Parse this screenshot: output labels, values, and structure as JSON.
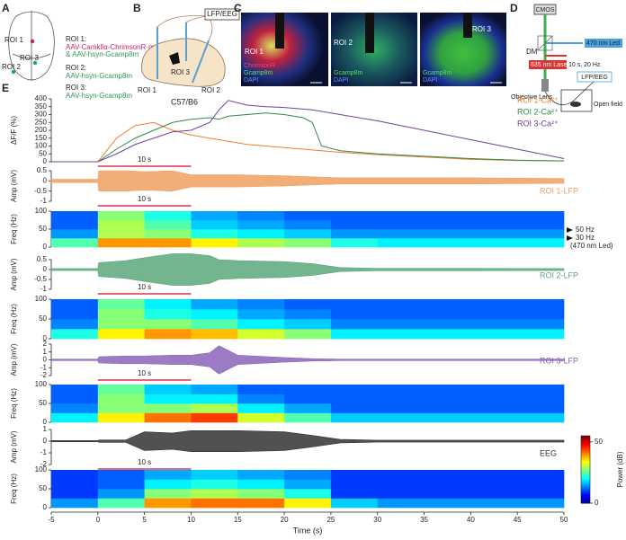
{
  "figure": {
    "panel_a": {
      "label": "A",
      "roi_marks": [
        "ROI 1",
        "ROI 3",
        "ROI 2"
      ],
      "notes": [
        {
          "title": "ROI 1:",
          "lines": [
            "AAV-Camkllα-ChrimsonR-m",
            "& AAV-hsyn-Gcamp8m"
          ]
        },
        {
          "title": "ROI 2:",
          "lines": [
            "AAV-hsyn-Gcamp8m"
          ]
        },
        {
          "title": "ROI 3:",
          "lines": [
            "AAV-hsyn-Gcamp8m"
          ]
        }
      ]
    },
    "panel_b": {
      "label": "B",
      "recording": "LFP/EEG",
      "rois": [
        "ROI 3",
        "ROI 1",
        "ROI 2"
      ],
      "strain": "C57/B6"
    },
    "panel_c": {
      "label": "C",
      "images": [
        {
          "roi": "ROI 1",
          "stains": [
            "ChrimsonR",
            "Gcamp8m",
            "DAPI"
          ]
        },
        {
          "roi": "ROI 2",
          "stains": [
            "Gcamp8m",
            "DAPI"
          ]
        },
        {
          "roi": "ROI 3",
          "stains": [
            "Gcamp8m",
            "DAPI"
          ]
        }
      ]
    },
    "panel_d": {
      "label": "D",
      "camera": "CMOS",
      "mirror": "DM",
      "led": "470 nm Led",
      "laser": "635 nm Laser",
      "laser_protocol": "10 s, 20 Hz",
      "lens": "Objective Lens",
      "recording": "LFP/EEG",
      "arena": "Open field"
    },
    "panel_e": {
      "label": "E",
      "annotations": [
        "50 Hz",
        "30 Hz",
        "(470 nm Led)"
      ],
      "colorbar": {
        "label": "Power (dB)",
        "lim": [
          0,
          55
        ],
        "ticks": [
          0,
          50
        ]
      }
    }
  },
  "chart_data": [
    {
      "type": "line",
      "ylabel": "ΔF/F (%)",
      "xlim": [
        -5,
        50
      ],
      "ylim": [
        0,
        400
      ],
      "yticks": [
        0,
        50,
        100,
        150,
        200,
        250,
        300,
        350,
        400
      ],
      "stimulus": [
        0,
        10
      ],
      "stim_label": "10 s",
      "x": [
        -5,
        0,
        2,
        4,
        6,
        8,
        10,
        12,
        13,
        14,
        16,
        18,
        20,
        22,
        23,
        24,
        26,
        30,
        35,
        40,
        45,
        50
      ],
      "series": [
        {
          "name": "ROI 1-Ca²⁺",
          "color": "#ee7d31",
          "values": [
            0,
            0,
            150,
            230,
            250,
            200,
            170,
            150,
            140,
            130,
            110,
            100,
            90,
            80,
            75,
            70,
            60,
            45,
            30,
            15,
            8,
            5
          ]
        },
        {
          "name": "ROI 2-Ca²⁺",
          "color": "#2e8b4a",
          "values": [
            0,
            0,
            80,
            150,
            200,
            250,
            270,
            280,
            270,
            290,
            300,
            310,
            300,
            280,
            250,
            100,
            70,
            50,
            35,
            20,
            10,
            5
          ]
        },
        {
          "name": "ROI 3-Ca²⁺",
          "color": "#7040a0",
          "values": [
            0,
            0,
            50,
            110,
            150,
            190,
            200,
            250,
            330,
            390,
            360,
            350,
            345,
            335,
            330,
            320,
            300,
            260,
            200,
            140,
            80,
            20
          ]
        }
      ]
    },
    {
      "type": "area",
      "ylabel": "Amp (mV)",
      "name": "ROI 1-LFP",
      "color": "#f0a060",
      "xlim": [
        -5,
        50
      ],
      "ylim": [
        -1,
        0.5
      ],
      "yticks": [
        -1,
        -0.5,
        0,
        0.5
      ],
      "stimulus": [
        0,
        10
      ],
      "stim_label": "10 s",
      "x": [
        -5,
        0,
        0.1,
        3,
        5,
        8,
        10,
        12,
        13,
        15,
        20,
        23,
        26,
        30,
        40,
        50
      ],
      "values": [
        0.08,
        0.08,
        0.5,
        0.5,
        0.45,
        0.5,
        0.3,
        0.3,
        0.3,
        0.3,
        0.25,
        0.2,
        0.15,
        0.15,
        0.15,
        0.12
      ]
    },
    {
      "type": "heatmap",
      "ylabel": "Freq (Hz)",
      "xlim": [
        -5,
        50
      ],
      "ylim": [
        0,
        100
      ],
      "yticks": [
        0,
        50,
        100
      ],
      "x_edges": [
        -5,
        0,
        5,
        10,
        15,
        20,
        25,
        30,
        40,
        50
      ],
      "y_edges": [
        0,
        25,
        50,
        75,
        100
      ],
      "z": [
        [
          25,
          40,
          40,
          35,
          30,
          28,
          22,
          20,
          20
        ],
        [
          15,
          30,
          28,
          22,
          20,
          18,
          15,
          15,
          15
        ],
        [
          12,
          30,
          25,
          18,
          16,
          14,
          12,
          12,
          12
        ],
        [
          12,
          28,
          22,
          16,
          14,
          12,
          12,
          12,
          12
        ]
      ]
    },
    {
      "type": "area",
      "ylabel": "Amp (mV)",
      "name": "ROI 2-LFP",
      "color": "#5aa87a",
      "xlim": [
        -5,
        50
      ],
      "ylim": [
        -1,
        0.5
      ],
      "yticks": [
        -1,
        -0.5,
        0,
        0.5
      ],
      "stimulus": [
        0,
        10
      ],
      "stim_label": "10 s",
      "x": [
        -5,
        0,
        0.1,
        3,
        5,
        8,
        10,
        12,
        13,
        15,
        20,
        23,
        26,
        30,
        40,
        50
      ],
      "values": [
        0.05,
        0.05,
        0.35,
        0.45,
        0.6,
        0.8,
        0.8,
        0.7,
        0.5,
        0.45,
        0.4,
        0.3,
        0.1,
        0.06,
        0.06,
        0.05
      ]
    },
    {
      "type": "heatmap",
      "ylabel": "Freq (Hz)",
      "xlim": [
        -5,
        50
      ],
      "ylim": [
        0,
        100
      ],
      "yticks": [
        0,
        50,
        100
      ],
      "x_edges": [
        -5,
        0,
        5,
        10,
        15,
        20,
        25,
        30,
        40,
        50
      ],
      "y_edges": [
        0,
        25,
        50,
        75,
        100
      ],
      "z": [
        [
          22,
          35,
          40,
          38,
          32,
          28,
          20,
          20,
          20
        ],
        [
          14,
          28,
          28,
          25,
          20,
          18,
          14,
          14,
          14
        ],
        [
          12,
          28,
          22,
          20,
          16,
          14,
          12,
          12,
          12
        ],
        [
          12,
          26,
          20,
          16,
          14,
          12,
          12,
          12,
          12
        ]
      ]
    },
    {
      "type": "area",
      "ylabel": "Amp (mV)",
      "name": "ROI 3-LFP",
      "color": "#8a64b8",
      "xlim": [
        -5,
        50
      ],
      "ylim": [
        -2,
        2
      ],
      "yticks": [
        -2,
        -1,
        0,
        1,
        2
      ],
      "stimulus": [
        0,
        10
      ],
      "stim_label": "10 s",
      "x": [
        -5,
        0,
        0.1,
        3,
        5,
        8,
        10,
        12,
        13,
        15,
        20,
        23,
        26,
        30,
        40,
        50
      ],
      "values": [
        0.1,
        0.1,
        0.4,
        0.5,
        0.5,
        0.6,
        0.6,
        0.9,
        1.8,
        0.6,
        0.3,
        0.15,
        0.1,
        0.1,
        0.1,
        0.1
      ]
    },
    {
      "type": "heatmap",
      "ylabel": "Freq (Hz)",
      "xlim": [
        -5,
        50
      ],
      "ylim": [
        0,
        100
      ],
      "yticks": [
        0,
        50,
        100
      ],
      "x_edges": [
        -5,
        0,
        5,
        10,
        15,
        20,
        25,
        30,
        40,
        50
      ],
      "y_edges": [
        0,
        25,
        50,
        75,
        100
      ],
      "z": [
        [
          20,
          35,
          42,
          45,
          32,
          25,
          18,
          18,
          18
        ],
        [
          14,
          28,
          28,
          30,
          20,
          16,
          12,
          12,
          12
        ],
        [
          12,
          28,
          20,
          20,
          14,
          12,
          12,
          12,
          12
        ],
        [
          12,
          26,
          18,
          16,
          12,
          12,
          12,
          12,
          12
        ]
      ]
    },
    {
      "type": "area",
      "ylabel": "Amp (mV)",
      "name": "EEG",
      "color": "#333333",
      "xlim": [
        -5,
        50
      ],
      "ylim": [
        -2,
        1
      ],
      "yticks": [
        -2,
        -1,
        0,
        1
      ],
      "stimulus": [
        0,
        10
      ],
      "stim_label": "10 s",
      "x": [
        -5,
        0,
        0.1,
        3,
        5,
        8,
        10,
        12,
        13,
        15,
        20,
        23,
        26,
        30,
        40,
        50
      ],
      "values": [
        0.05,
        0.05,
        0.1,
        0.1,
        0.8,
        0.7,
        0.9,
        0.9,
        0.9,
        0.9,
        0.8,
        0.5,
        0.15,
        0.08,
        0.08,
        0.08
      ]
    },
    {
      "type": "heatmap",
      "ylabel": "Freq (Hz)",
      "xlabel": "Time (s)",
      "xlim": [
        -5,
        50
      ],
      "xticks": [
        -5,
        0,
        5,
        10,
        15,
        20,
        25,
        30,
        35,
        40,
        45,
        50
      ],
      "ylim": [
        0,
        100
      ],
      "yticks": [
        0,
        50,
        100
      ],
      "x_edges": [
        -5,
        0,
        5,
        10,
        15,
        20,
        25,
        30,
        40,
        50
      ],
      "y_edges": [
        0,
        25,
        50,
        75,
        100
      ],
      "z": [
        [
          15,
          25,
          40,
          42,
          42,
          35,
          18,
          15,
          15
        ],
        [
          10,
          15,
          28,
          30,
          28,
          22,
          10,
          10,
          10
        ],
        [
          10,
          12,
          20,
          22,
          20,
          16,
          10,
          10,
          10
        ],
        [
          10,
          12,
          16,
          18,
          16,
          14,
          10,
          10,
          10
        ]
      ]
    }
  ]
}
